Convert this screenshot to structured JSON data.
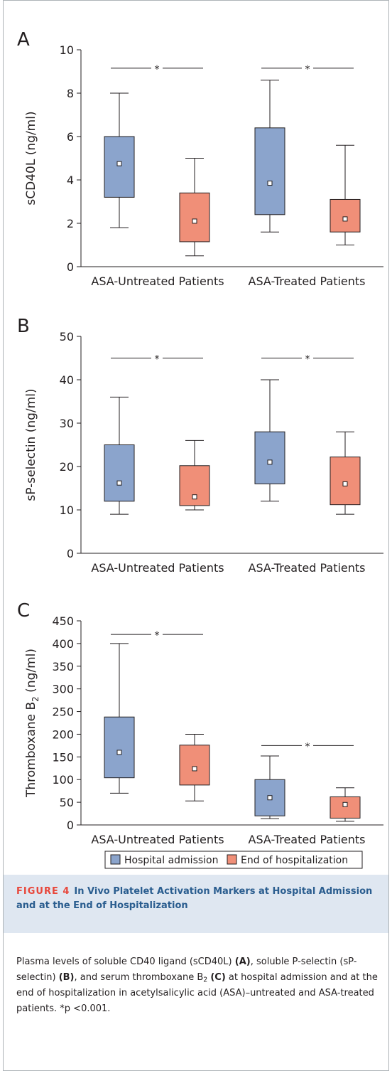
{
  "colors": {
    "admission": "#8ba4cc",
    "end": "#f08f78",
    "axis": "#231f20",
    "caption_band": "#dfe7f1",
    "caption_title": "#2a5d8f",
    "caption_label": "#e8473b"
  },
  "chart_data": [
    {
      "type": "box",
      "panel_label": "A",
      "ylabel": "sCD40L (ng/ml)",
      "ylim": [
        0,
        10
      ],
      "yticks": [
        0,
        2,
        4,
        6,
        8,
        10
      ],
      "categories": [
        "ASA-Untreated Patients",
        "ASA-Treated Patients"
      ],
      "series": [
        {
          "name": "Hospital admission",
          "boxes": [
            {
              "min": 1.8,
              "q1": 3.2,
              "median": 4.75,
              "q3": 6.0,
              "max": 8.0
            },
            {
              "min": 1.6,
              "q1": 2.4,
              "median": 3.85,
              "q3": 6.4,
              "max": 8.6
            }
          ]
        },
        {
          "name": "End of hospitalization",
          "boxes": [
            {
              "min": 0.5,
              "q1": 1.15,
              "median": 2.1,
              "q3": 3.4,
              "max": 5.0
            },
            {
              "min": 1.0,
              "q1": 1.6,
              "median": 2.2,
              "q3": 3.1,
              "max": 5.6
            }
          ]
        }
      ],
      "significance": [
        {
          "group": 0,
          "y": 9.15,
          "label": "*"
        },
        {
          "group": 1,
          "y": 9.15,
          "label": "*"
        }
      ]
    },
    {
      "type": "box",
      "panel_label": "B",
      "ylabel": "sP-selectin (ng/ml)",
      "ylim": [
        0,
        50
      ],
      "yticks": [
        0,
        10,
        20,
        30,
        40,
        50
      ],
      "categories": [
        "ASA-Untreated Patients",
        "ASA-Treated Patients"
      ],
      "series": [
        {
          "name": "Hospital admission",
          "boxes": [
            {
              "min": 9,
              "q1": 12,
              "median": 16.2,
              "q3": 25,
              "max": 36
            },
            {
              "min": 12,
              "q1": 16,
              "median": 21,
              "q3": 28,
              "max": 40
            }
          ]
        },
        {
          "name": "End of hospitalization",
          "boxes": [
            {
              "min": 10,
              "q1": 11,
              "median": 13,
              "q3": 20.2,
              "max": 26
            },
            {
              "min": 9,
              "q1": 11.2,
              "median": 16,
              "q3": 22.2,
              "max": 28
            }
          ]
        }
      ],
      "significance": [
        {
          "group": 0,
          "y": 45,
          "label": "*"
        },
        {
          "group": 1,
          "y": 45,
          "label": "*"
        }
      ]
    },
    {
      "type": "box",
      "panel_label": "C",
      "ylabel_main": "Thromboxane B",
      "ylabel_sub": "2",
      "ylabel_unit": " (ng/ml)",
      "ylim": [
        0,
        450
      ],
      "yticks": [
        0,
        50,
        100,
        150,
        200,
        250,
        300,
        350,
        400,
        450
      ],
      "categories": [
        "ASA-Untreated Patients",
        "ASA-Treated Patients"
      ],
      "series": [
        {
          "name": "Hospital admission",
          "boxes": [
            {
              "min": 70,
              "q1": 104,
              "median": 160,
              "q3": 238,
              "max": 400
            },
            {
              "min": 14,
              "q1": 20,
              "median": 60,
              "q3": 100,
              "max": 152
            }
          ]
        },
        {
          "name": "End of hospitalization",
          "boxes": [
            {
              "min": 53,
              "q1": 88,
              "median": 124,
              "q3": 176,
              "max": 200
            },
            {
              "min": 8,
              "q1": 15,
              "median": 45,
              "q3": 62,
              "max": 82
            }
          ]
        }
      ],
      "significance": [
        {
          "group": 0,
          "y": 420,
          "label": "*"
        },
        {
          "group": 1,
          "y": 175,
          "label": "*"
        }
      ]
    }
  ],
  "legend": [
    {
      "label": "Hospital admission",
      "color": "#8ba4cc"
    },
    {
      "label": "End of hospitalization",
      "color": "#f08f78"
    }
  ],
  "caption": {
    "figure_label": "FIGURE 4",
    "title": "In Vivo Platelet Activation Markers at Hospital Admission and at the End of Hospitalization",
    "body": {
      "t1": "Plasma levels of soluble CD40 ligand (sCD40L) ",
      "t2": "(A)",
      "t3": ", soluble P-selectin (sP-selectin) ",
      "t4": "(B)",
      "t5": ", and serum thromboxane B",
      "t6": "2",
      "t7": " ",
      "t8": "(C)",
      "t9": " at hospital admission and at the end of hospitalization in acetylsalicylic acid (ASA)–untreated and ASA-treated patients. *p <0.001."
    }
  }
}
